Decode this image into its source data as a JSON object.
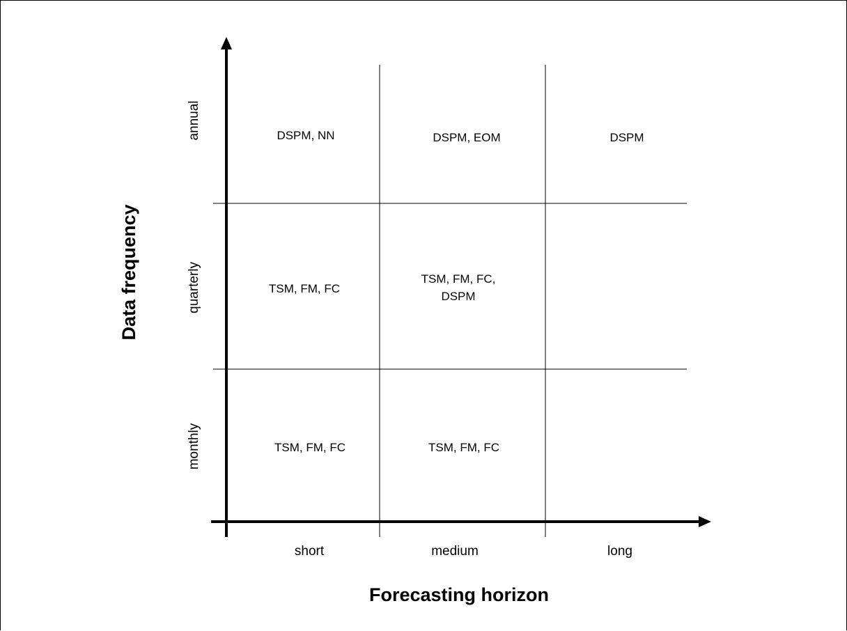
{
  "diagram": {
    "x_axis": {
      "title": "Forecasting horizon",
      "categories": [
        "short",
        "medium",
        "long"
      ]
    },
    "y_axis": {
      "title": "Data frequency",
      "categories": [
        "annual",
        "quarterly",
        "monthly"
      ]
    },
    "cells": {
      "annual": {
        "short": [
          "DSPM, NN"
        ],
        "medium": [
          "DSPM, EOM"
        ],
        "long": [
          "DSPM"
        ]
      },
      "quarterly": {
        "short": [
          "TSM, FM, FC"
        ],
        "medium": [
          "TSM, FM, FC,",
          "DSPM"
        ],
        "long": []
      },
      "monthly": {
        "short": [
          "TSM, FM, FC"
        ],
        "medium": [
          "TSM, FM, FC"
        ],
        "long": []
      }
    }
  }
}
